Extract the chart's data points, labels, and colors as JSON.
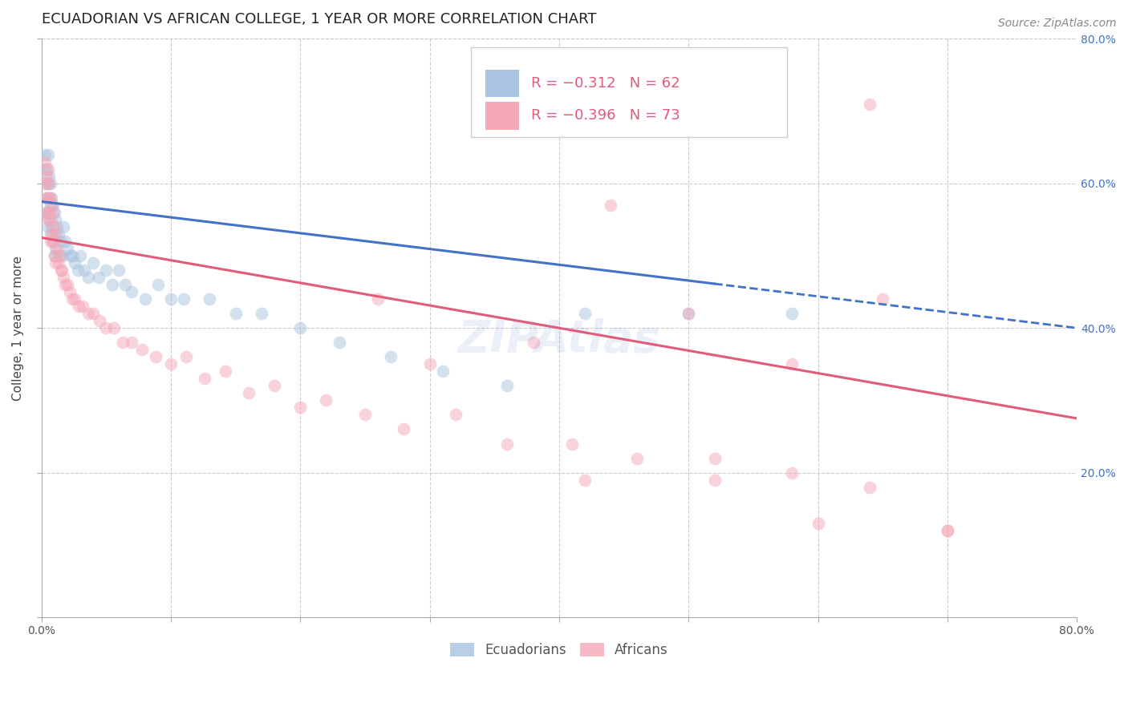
{
  "title": "ECUADORIAN VS AFRICAN COLLEGE, 1 YEAR OR MORE CORRELATION CHART",
  "source": "Source: ZipAtlas.com",
  "ylabel_label": "College, 1 year or more",
  "xlim": [
    0.0,
    0.8
  ],
  "ylim": [
    0.0,
    0.8
  ],
  "ecuadorians_color": "#a8c4e0",
  "africans_color": "#f4a8b8",
  "ecuadorians_line_color": "#4472c4",
  "africans_line_color": "#e05c7a",
  "legend_r1": "−0.312",
  "legend_n1": "62",
  "legend_r2": "−0.396",
  "legend_n2": "73",
  "ecuadorians_label": "Ecuadorians",
  "africans_label": "Africans",
  "watermark": "ZIPAtlas",
  "background_color": "#ffffff",
  "grid_color": "#cccccc",
  "right_axis_color": "#4472c4",
  "ecuadorians_x": [
    0.003,
    0.003,
    0.004,
    0.004,
    0.004,
    0.004,
    0.005,
    0.005,
    0.005,
    0.005,
    0.006,
    0.006,
    0.006,
    0.007,
    0.007,
    0.007,
    0.008,
    0.008,
    0.009,
    0.009,
    0.01,
    0.01,
    0.01,
    0.011,
    0.011,
    0.012,
    0.013,
    0.014,
    0.015,
    0.016,
    0.017,
    0.018,
    0.02,
    0.022,
    0.024,
    0.026,
    0.028,
    0.03,
    0.033,
    0.036,
    0.04,
    0.044,
    0.05,
    0.055,
    0.06,
    0.065,
    0.07,
    0.08,
    0.09,
    0.1,
    0.11,
    0.13,
    0.15,
    0.17,
    0.2,
    0.23,
    0.27,
    0.31,
    0.36,
    0.42,
    0.5,
    0.58
  ],
  "ecuadorians_y": [
    0.64,
    0.62,
    0.62,
    0.6,
    0.58,
    0.56,
    0.64,
    0.6,
    0.56,
    0.54,
    0.61,
    0.58,
    0.55,
    0.6,
    0.57,
    0.53,
    0.58,
    0.54,
    0.57,
    0.52,
    0.56,
    0.53,
    0.5,
    0.55,
    0.51,
    0.54,
    0.53,
    0.5,
    0.52,
    0.5,
    0.54,
    0.52,
    0.51,
    0.5,
    0.5,
    0.49,
    0.48,
    0.5,
    0.48,
    0.47,
    0.49,
    0.47,
    0.48,
    0.46,
    0.48,
    0.46,
    0.45,
    0.44,
    0.46,
    0.44,
    0.44,
    0.44,
    0.42,
    0.42,
    0.4,
    0.38,
    0.36,
    0.34,
    0.32,
    0.42,
    0.42,
    0.42
  ],
  "africans_x": [
    0.003,
    0.003,
    0.004,
    0.004,
    0.004,
    0.005,
    0.005,
    0.005,
    0.006,
    0.006,
    0.007,
    0.007,
    0.007,
    0.008,
    0.008,
    0.009,
    0.009,
    0.01,
    0.01,
    0.011,
    0.011,
    0.012,
    0.013,
    0.014,
    0.015,
    0.016,
    0.017,
    0.018,
    0.02,
    0.022,
    0.024,
    0.026,
    0.029,
    0.032,
    0.036,
    0.04,
    0.045,
    0.05,
    0.056,
    0.063,
    0.07,
    0.078,
    0.088,
    0.1,
    0.112,
    0.126,
    0.142,
    0.16,
    0.18,
    0.2,
    0.22,
    0.25,
    0.28,
    0.32,
    0.36,
    0.41,
    0.46,
    0.52,
    0.58,
    0.64,
    0.7,
    0.7,
    0.26,
    0.3,
    0.38,
    0.44,
    0.5,
    0.58,
    0.64,
    0.65,
    0.42,
    0.52,
    0.6
  ],
  "africans_y": [
    0.63,
    0.6,
    0.61,
    0.58,
    0.56,
    0.62,
    0.58,
    0.55,
    0.6,
    0.56,
    0.58,
    0.55,
    0.52,
    0.57,
    0.53,
    0.56,
    0.52,
    0.54,
    0.5,
    0.53,
    0.49,
    0.51,
    0.49,
    0.5,
    0.48,
    0.48,
    0.47,
    0.46,
    0.46,
    0.45,
    0.44,
    0.44,
    0.43,
    0.43,
    0.42,
    0.42,
    0.41,
    0.4,
    0.4,
    0.38,
    0.38,
    0.37,
    0.36,
    0.35,
    0.36,
    0.33,
    0.34,
    0.31,
    0.32,
    0.29,
    0.3,
    0.28,
    0.26,
    0.28,
    0.24,
    0.24,
    0.22,
    0.22,
    0.2,
    0.18,
    0.12,
    0.12,
    0.44,
    0.35,
    0.38,
    0.57,
    0.42,
    0.35,
    0.71,
    0.44,
    0.19,
    0.19,
    0.13
  ],
  "ecu_line_x0": 0.0,
  "ecu_line_x_solid_end": 0.52,
  "ecu_line_x_dashed_end": 0.8,
  "ecu_line_y_start": 0.575,
  "ecu_line_y_end": 0.4,
  "afr_line_x0": 0.0,
  "afr_line_x_end": 0.8,
  "afr_line_y_start": 0.525,
  "afr_line_y_end": 0.275,
  "marker_size": 130,
  "marker_alpha": 0.5,
  "title_fontsize": 13,
  "source_fontsize": 10,
  "axis_label_fontsize": 11,
  "tick_fontsize": 10,
  "legend_fontsize": 13,
  "watermark_fontsize": 40,
  "watermark_alpha": 0.1,
  "watermark_color": "#4472c4"
}
